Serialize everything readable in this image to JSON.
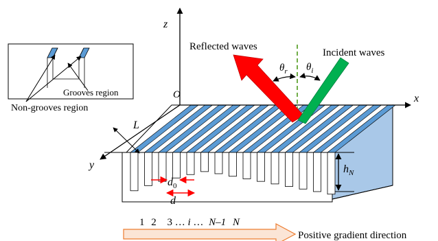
{
  "labels": {
    "axis_z": "z",
    "axis_x": "x",
    "axis_y": "y",
    "origin": "O",
    "reflected": "Reflected waves",
    "incident": "Incident waves",
    "theta": "θ",
    "theta_r_sub": "r",
    "theta_i_sub": "i",
    "length_L": "L",
    "d0_main": "d",
    "d0_sub": "0",
    "d": "d",
    "h_main": "h",
    "h_sub": "N",
    "inset_grooves": "Grooves region",
    "inset_nongrooves": "Non-grooves region",
    "gradient_label": "Positive gradient direction",
    "index_sequence": [
      "1",
      "2",
      "3",
      "…",
      "i",
      "…",
      "N–1",
      "N"
    ]
  },
  "colors": {
    "groove_blue": "#5b9bd5",
    "side_blue": "#a9c8e8",
    "reflected_red": "#ff0000",
    "incident_green": "#00b050",
    "normal_green": "#70ad47",
    "dimension_red": "#ff0000",
    "arrow_fill": "#fbe5d6",
    "arrow_stroke": "#ed7d31"
  },
  "grooves": {
    "count": 15,
    "depths": [
      0.9,
      0.78,
      0.68,
      0.6,
      0.52,
      0.45,
      0.5,
      0.56,
      0.62,
      0.68,
      0.74,
      0.8,
      0.86,
      0.92,
      0.98
    ]
  }
}
